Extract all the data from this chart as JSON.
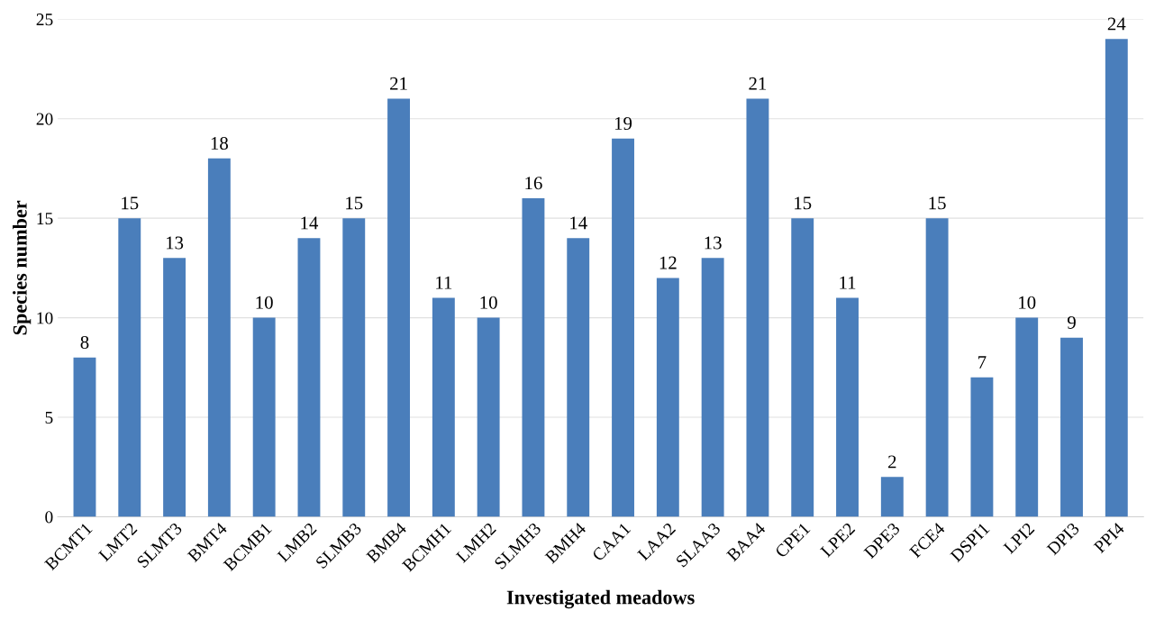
{
  "chart_data": {
    "type": "bar",
    "xlabel": "Investigated meadows",
    "ylabel": "Species number",
    "categories": [
      "BCMT1",
      "LMT2",
      "SLMT3",
      "BMT4",
      "BCMB1",
      "LMB2",
      "SLMB3",
      "BMB4",
      "BCMH1",
      "LMH2",
      "SLMH3",
      "BMH4",
      "CAA1",
      "LAA2",
      "SLAA3",
      "BAA4",
      "CPE1",
      "LPE2",
      "DPE3",
      "FCE4",
      "DSPI1",
      "LPI2",
      "DPI3",
      "PPI4"
    ],
    "values": [
      8,
      15,
      13,
      18,
      10,
      14,
      15,
      21,
      11,
      10,
      16,
      14,
      19,
      12,
      13,
      21,
      15,
      11,
      2,
      15,
      7,
      10,
      9,
      24
    ],
    "color": "#4a7ebb",
    "ylim": [
      0,
      25
    ],
    "yticks": [
      0,
      5,
      10,
      15,
      20,
      25
    ],
    "grid": "y",
    "data_labels": true
  }
}
